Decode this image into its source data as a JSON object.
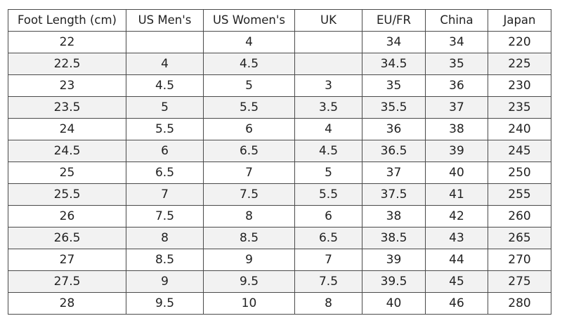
{
  "table": {
    "headers": [
      "Foot Length (cm)",
      "US Men's",
      "US Women's",
      "UK",
      "EU/FR",
      "China",
      "Japan"
    ],
    "rows": [
      [
        "22",
        "",
        "4",
        "",
        "34",
        "34",
        "220"
      ],
      [
        "22.5",
        "4",
        "4.5",
        "",
        "34.5",
        "35",
        "225"
      ],
      [
        "23",
        "4.5",
        "5",
        "3",
        "35",
        "36",
        "230"
      ],
      [
        "23.5",
        "5",
        "5.5",
        "3.5",
        "35.5",
        "37",
        "235"
      ],
      [
        "24",
        "5.5",
        "6",
        "4",
        "36",
        "38",
        "240"
      ],
      [
        "24.5",
        "6",
        "6.5",
        "4.5",
        "36.5",
        "39",
        "245"
      ],
      [
        "25",
        "6.5",
        "7",
        "5",
        "37",
        "40",
        "250"
      ],
      [
        "25.5",
        "7",
        "7.5",
        "5.5",
        "37.5",
        "41",
        "255"
      ],
      [
        "26",
        "7.5",
        "8",
        "6",
        "38",
        "42",
        "260"
      ],
      [
        "26.5",
        "8",
        "8.5",
        "6.5",
        "38.5",
        "43",
        "265"
      ],
      [
        "27",
        "8.5",
        "9",
        "7",
        "39",
        "44",
        "270"
      ],
      [
        "27.5",
        "9",
        "9.5",
        "7.5",
        "39.5",
        "45",
        "275"
      ],
      [
        "28",
        "9.5",
        "10",
        "8",
        "40",
        "46",
        "280"
      ]
    ],
    "stripe_color": "#f2f2f2",
    "border_color": "#4a4a4a"
  }
}
